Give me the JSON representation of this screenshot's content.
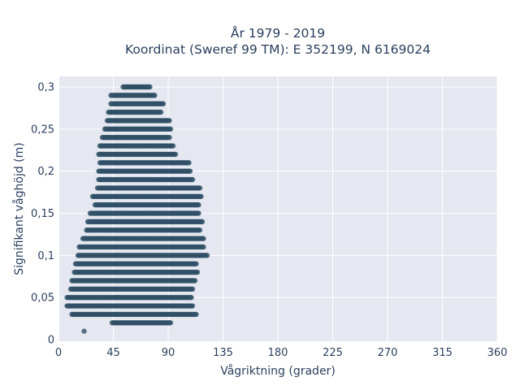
{
  "chart_data": {
    "type": "scatter",
    "title_lines": [
      "År 1979 - 2019",
      "Koordinat (Sweref 99 TM): E 352199, N 6169024"
    ],
    "xlabel": "Vågriktning (grader)",
    "ylabel": "Signifikant våghöjd (m)",
    "xlim": [
      0,
      360
    ],
    "ylim": [
      0,
      0.3
    ],
    "x_ticks": [
      0,
      45,
      90,
      135,
      180,
      225,
      270,
      315,
      360
    ],
    "x_tick_labels": [
      "0",
      "45",
      "90",
      "135",
      "180",
      "225",
      "270",
      "315",
      "360"
    ],
    "y_ticks": [
      0,
      0.05,
      0.1,
      0.15,
      0.2,
      0.25,
      0.3
    ],
    "y_tick_labels": [
      "0",
      "0,05",
      "0,1",
      "0,15",
      "0,2",
      "0,25",
      "0,3"
    ],
    "grid": true,
    "marker_color": "#2f4f67",
    "bands": [
      {
        "y": 0.01,
        "x_min": 21,
        "x_max": 21
      },
      {
        "y": 0.02,
        "x_min": 44,
        "x_max": 92
      },
      {
        "y": 0.03,
        "x_min": 11,
        "x_max": 113
      },
      {
        "y": 0.04,
        "x_min": 7,
        "x_max": 110
      },
      {
        "y": 0.05,
        "x_min": 7,
        "x_max": 109
      },
      {
        "y": 0.06,
        "x_min": 10,
        "x_max": 110
      },
      {
        "y": 0.07,
        "x_min": 11,
        "x_max": 112
      },
      {
        "y": 0.08,
        "x_min": 13,
        "x_max": 114
      },
      {
        "y": 0.09,
        "x_min": 14,
        "x_max": 113
      },
      {
        "y": 0.1,
        "x_min": 16,
        "x_max": 122
      },
      {
        "y": 0.11,
        "x_min": 17,
        "x_max": 119
      },
      {
        "y": 0.12,
        "x_min": 20,
        "x_max": 119
      },
      {
        "y": 0.13,
        "x_min": 23,
        "x_max": 116
      },
      {
        "y": 0.14,
        "x_min": 24,
        "x_max": 118
      },
      {
        "y": 0.15,
        "x_min": 26,
        "x_max": 115
      },
      {
        "y": 0.16,
        "x_min": 30,
        "x_max": 115
      },
      {
        "y": 0.17,
        "x_min": 28,
        "x_max": 117
      },
      {
        "y": 0.18,
        "x_min": 32,
        "x_max": 116
      },
      {
        "y": 0.19,
        "x_min": 33,
        "x_max": 110
      },
      {
        "y": 0.2,
        "x_min": 33,
        "x_max": 108
      },
      {
        "y": 0.21,
        "x_min": 34,
        "x_max": 107
      },
      {
        "y": 0.22,
        "x_min": 33,
        "x_max": 96
      },
      {
        "y": 0.23,
        "x_min": 34,
        "x_max": 94
      },
      {
        "y": 0.24,
        "x_min": 36,
        "x_max": 91
      },
      {
        "y": 0.25,
        "x_min": 38,
        "x_max": 92
      },
      {
        "y": 0.26,
        "x_min": 40,
        "x_max": 91
      },
      {
        "y": 0.27,
        "x_min": 41,
        "x_max": 84
      },
      {
        "y": 0.28,
        "x_min": 43,
        "x_max": 86
      },
      {
        "y": 0.29,
        "x_min": 43,
        "x_max": 79
      },
      {
        "y": 0.3,
        "x_min": 53,
        "x_max": 75
      }
    ]
  }
}
